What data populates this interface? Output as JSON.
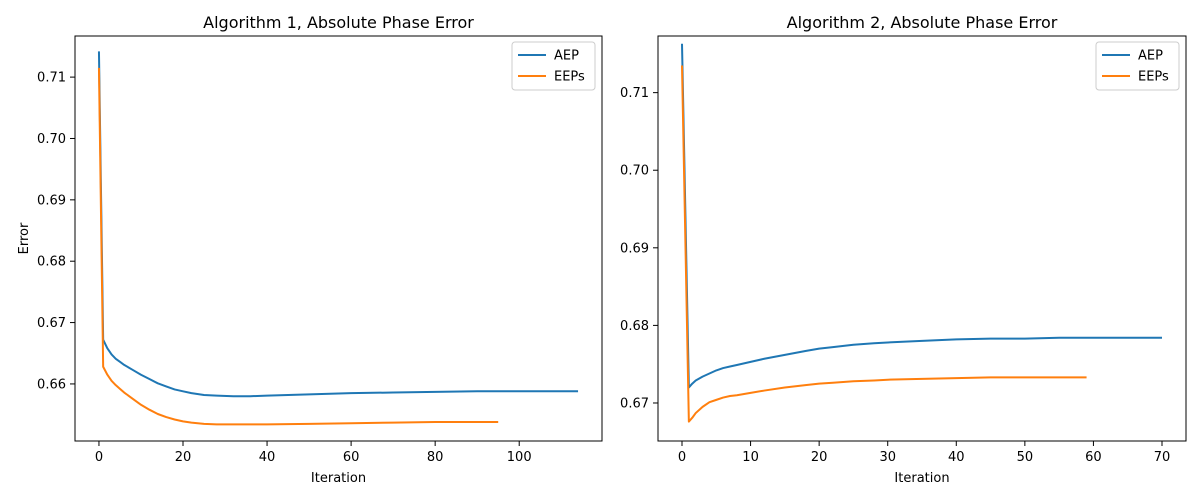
{
  "chart_data": [
    {
      "type": "line",
      "title": "Algorithm 1, Absolute Phase Error",
      "xlabel": "Iteration",
      "ylabel": "Error",
      "xlim": [
        -5.7,
        119.7
      ],
      "ylim": [
        0.6507,
        0.7167
      ],
      "xticks": [
        0,
        20,
        40,
        60,
        80,
        100
      ],
      "yticks": [
        0.66,
        0.67,
        0.68,
        0.69,
        0.7,
        0.71
      ],
      "ytick_labels": [
        "0.66",
        "0.67",
        "0.68",
        "0.69",
        "0.70",
        "0.71"
      ],
      "grid": false,
      "legend": "top-right",
      "series": [
        {
          "name": "AEP",
          "color": "#1f77b4",
          "x": [
            0,
            1,
            2,
            3,
            4,
            5,
            6,
            8,
            10,
            12,
            14,
            16,
            18,
            20,
            22,
            25,
            28,
            32,
            36,
            40,
            50,
            60,
            70,
            80,
            90,
            100,
            110,
            114
          ],
          "y": [
            0.7142,
            0.6672,
            0.6658,
            0.6648,
            0.6641,
            0.6636,
            0.6631,
            0.6623,
            0.6615,
            0.6608,
            0.6601,
            0.6596,
            0.6591,
            0.6588,
            0.6585,
            0.6582,
            0.6581,
            0.658,
            0.658,
            0.6581,
            0.6583,
            0.6585,
            0.6586,
            0.6587,
            0.6588,
            0.6588,
            0.6588,
            0.6588
          ]
        },
        {
          "name": "EEPs",
          "color": "#ff7f0e",
          "x": [
            0,
            1,
            2,
            3,
            4,
            5,
            6,
            8,
            10,
            12,
            14,
            16,
            18,
            20,
            22,
            25,
            28,
            32,
            36,
            40,
            50,
            60,
            70,
            80,
            90,
            95
          ],
          "y": [
            0.7115,
            0.6628,
            0.6615,
            0.6605,
            0.6598,
            0.6592,
            0.6586,
            0.6576,
            0.6566,
            0.6558,
            0.6551,
            0.6546,
            0.6542,
            0.6539,
            0.6537,
            0.6535,
            0.6534,
            0.6534,
            0.6534,
            0.6534,
            0.6535,
            0.6536,
            0.6537,
            0.6538,
            0.6538,
            0.6538
          ]
        }
      ]
    },
    {
      "type": "line",
      "title": "Algorithm 2, Absolute Phase Error",
      "xlabel": "Iteration",
      "ylabel": "",
      "xlim": [
        -3.5,
        73.5
      ],
      "ylim": [
        0.6651,
        0.7173
      ],
      "xticks": [
        0,
        10,
        20,
        30,
        40,
        50,
        60,
        70
      ],
      "yticks": [
        0.67,
        0.68,
        0.69,
        0.7,
        0.71
      ],
      "ytick_labels": [
        "0.67",
        "0.68",
        "0.69",
        "0.70",
        "0.71"
      ],
      "grid": false,
      "legend": "top-right",
      "series": [
        {
          "name": "AEP",
          "color": "#1f77b4",
          "x": [
            0,
            1,
            1.5,
            2,
            3,
            4,
            5,
            6,
            7,
            8,
            10,
            12,
            15,
            18,
            20,
            22,
            25,
            28,
            30,
            35,
            40,
            45,
            50,
            55,
            60,
            65,
            70
          ],
          "y": [
            0.7163,
            0.672,
            0.6725,
            0.6729,
            0.6734,
            0.6738,
            0.6742,
            0.6745,
            0.6747,
            0.6749,
            0.6753,
            0.6757,
            0.6762,
            0.6767,
            0.677,
            0.6772,
            0.6775,
            0.6777,
            0.6778,
            0.678,
            0.6782,
            0.6783,
            0.6783,
            0.6784,
            0.6784,
            0.6784,
            0.6784
          ]
        },
        {
          "name": "EEPs",
          "color": "#ff7f0e",
          "x": [
            0,
            1,
            1.5,
            2,
            3,
            4,
            5,
            6,
            7,
            8,
            10,
            12,
            15,
            18,
            20,
            22,
            25,
            28,
            30,
            35,
            40,
            45,
            50,
            55,
            59
          ],
          "y": [
            0.7135,
            0.6676,
            0.6681,
            0.6687,
            0.6695,
            0.6701,
            0.6704,
            0.6707,
            0.6709,
            0.671,
            0.6713,
            0.6716,
            0.672,
            0.6723,
            0.6725,
            0.6726,
            0.6728,
            0.6729,
            0.673,
            0.6731,
            0.6732,
            0.6733,
            0.6733,
            0.6733,
            0.6733
          ]
        }
      ]
    }
  ]
}
